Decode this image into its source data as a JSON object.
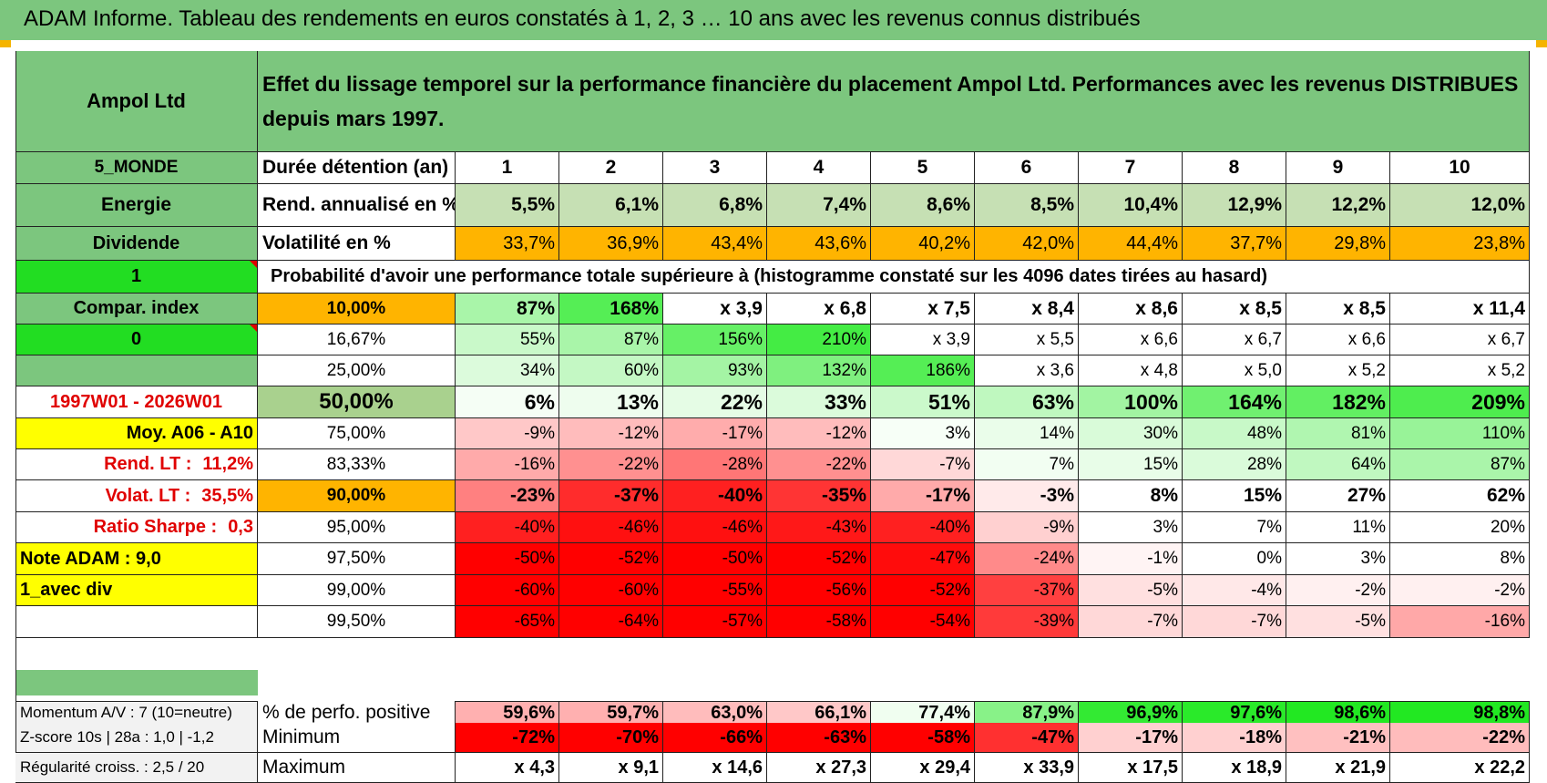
{
  "header": {
    "title": "ADAM Informe. Tableau des rendements en euros constatés à 1, 2, 3 … 10 ans avec les revenus connus distribués"
  },
  "colors": {
    "green_header": "#7cc67e",
    "bright_green": "#22dd22",
    "orange": "#ffb400",
    "yellow": "#ffff00",
    "light_green": "#c6e0b4"
  },
  "left_panel": {
    "company": "Ampol Ltd",
    "region": "5_MONDE",
    "sector": "Energie",
    "type": "Dividende",
    "flag_1": "1",
    "compar_index": "Compar. index",
    "flag_0": "0",
    "period": "1997W01 - 2026W01",
    "moy": "Moy. A06 - A10",
    "rend_lt_label": "Rend. LT :",
    "rend_lt_value": "11,2%",
    "volat_lt_label": "Volat. LT :",
    "volat_lt_value": "35,5%",
    "sharpe_label": "Ratio Sharpe :",
    "sharpe_value": "0,3",
    "note": "Note ADAM : 9,0",
    "avec_div": "1_avec div"
  },
  "main": {
    "description": "Effet du lissage temporel sur la performance financière du placement Ampol Ltd. Performances avec les revenus DISTRIBUES depuis mars 1997.",
    "duration_label": "Durée détention (an)",
    "years": [
      "1",
      "2",
      "3",
      "4",
      "5",
      "6",
      "7",
      "8",
      "9",
      "10"
    ],
    "rend_label": "Rend. annualisé en %",
    "rend_values": [
      "5,5%",
      "6,1%",
      "6,8%",
      "7,4%",
      "8,6%",
      "8,5%",
      "10,4%",
      "12,9%",
      "12,2%",
      "12,0%"
    ],
    "vol_label": "Volatilité en %",
    "vol_values": [
      "33,7%",
      "36,9%",
      "43,4%",
      "43,6%",
      "40,2%",
      "42,0%",
      "44,4%",
      "37,7%",
      "29,8%",
      "23,8%"
    ],
    "prob_title": "Probabilité d'avoir une performance totale supérieure à (histogramme constaté sur les 4096 dates tirées au hasard)"
  },
  "prob_rows": [
    {
      "threshold": "10,00%",
      "values": [
        "87%",
        "168%",
        "x 3,9",
        "x 6,8",
        "x 7,5",
        "x 8,4",
        "x 8,6",
        "x 8,5",
        "x 8,5",
        "x 11,4"
      ],
      "colors": [
        "#a9f5a9",
        "#55ee55",
        "#ffffff",
        "#ffffff",
        "#ffffff",
        "#ffffff",
        "#ffffff",
        "#ffffff",
        "#ffffff",
        "#ffffff"
      ]
    },
    {
      "threshold": "16,67%",
      "values": [
        "55%",
        "87%",
        "156%",
        "210%",
        "x 3,9",
        "x 5,5",
        "x 6,6",
        "x 6,7",
        "x 6,6",
        "x 6,7"
      ],
      "colors": [
        "#c9f9c9",
        "#a9f5a9",
        "#66f066",
        "#44ec44",
        "#ffffff",
        "#ffffff",
        "#ffffff",
        "#ffffff",
        "#ffffff",
        "#ffffff"
      ]
    },
    {
      "threshold": "25,00%",
      "values": [
        "34%",
        "60%",
        "93%",
        "132%",
        "186%",
        "x 3,6",
        "x 4,8",
        "x 5,0",
        "x 5,2",
        "x 5,2"
      ],
      "colors": [
        "#dcfbdc",
        "#c4f8c4",
        "#a4f4a4",
        "#7ff07f",
        "#55ee55",
        "#ffffff",
        "#ffffff",
        "#ffffff",
        "#ffffff",
        "#ffffff"
      ]
    },
    {
      "threshold": "50,00%",
      "values": [
        "6%",
        "13%",
        "22%",
        "33%",
        "51%",
        "63%",
        "100%",
        "164%",
        "182%",
        "209%"
      ],
      "colors": [
        "#f5fef5",
        "#eefdee",
        "#e5fce5",
        "#dbfbdb",
        "#cbf9cb",
        "#bff8bf",
        "#a2f4a2",
        "#70f070",
        "#62ef62",
        "#4eed4e"
      ]
    },
    {
      "threshold": "75,00%",
      "values": [
        "-9%",
        "-12%",
        "-17%",
        "-12%",
        "3%",
        "14%",
        "30%",
        "48%",
        "81%",
        "110%"
      ],
      "colors": [
        "#ffc8c8",
        "#ffbcbc",
        "#ffacac",
        "#ffbcbc",
        "#f7fff7",
        "#eafdea",
        "#d9fbd9",
        "#c8f9c8",
        "#b0f6b0",
        "#98f398"
      ]
    },
    {
      "threshold": "83,33%",
      "values": [
        "-16%",
        "-22%",
        "-28%",
        "-22%",
        "-7%",
        "7%",
        "15%",
        "28%",
        "64%",
        "87%"
      ],
      "colors": [
        "#ffaaaa",
        "#ff9090",
        "#ff7676",
        "#ff9090",
        "#ffd8d8",
        "#f2fef2",
        "#e8fde8",
        "#dafbda",
        "#c0f8c0",
        "#aaf5aa"
      ]
    },
    {
      "threshold": "90,00%",
      "values": [
        "-23%",
        "-37%",
        "-40%",
        "-35%",
        "-17%",
        "-3%",
        "8%",
        "15%",
        "27%",
        "62%"
      ],
      "colors": [
        "#ff8080",
        "#ff2c2c",
        "#ff2020",
        "#ff3434",
        "#ffaaaa",
        "#ffeaea",
        "#ffffff",
        "#ffffff",
        "#ffffff",
        "#ffffff"
      ]
    },
    {
      "threshold": "95,00%",
      "values": [
        "-40%",
        "-46%",
        "-46%",
        "-43%",
        "-40%",
        "-9%",
        "3%",
        "7%",
        "11%",
        "20%"
      ],
      "colors": [
        "#ff2020",
        "#ff1010",
        "#ff1010",
        "#ff1818",
        "#ff2020",
        "#ffd0d0",
        "#ffffff",
        "#ffffff",
        "#ffffff",
        "#ffffff"
      ]
    },
    {
      "threshold": "97,50%",
      "values": [
        "-50%",
        "-52%",
        "-50%",
        "-52%",
        "-47%",
        "-24%",
        "-1%",
        "0%",
        "3%",
        "8%"
      ],
      "colors": [
        "#ff0000",
        "#ff0000",
        "#ff0000",
        "#ff0000",
        "#ff0c0c",
        "#ff8a8a",
        "#fff4f4",
        "#ffffff",
        "#ffffff",
        "#ffffff"
      ]
    },
    {
      "threshold": "99,00%",
      "values": [
        "-60%",
        "-60%",
        "-55%",
        "-56%",
        "-52%",
        "-37%",
        "-5%",
        "-4%",
        "-2%",
        "-2%"
      ],
      "colors": [
        "#ff0000",
        "#ff0000",
        "#ff0000",
        "#ff0000",
        "#ff0000",
        "#ff4040",
        "#ffe0e0",
        "#ffe8e8",
        "#fff0f0",
        "#fff0f0"
      ]
    },
    {
      "threshold": "99,50%",
      "values": [
        "-65%",
        "-64%",
        "-57%",
        "-58%",
        "-54%",
        "-39%",
        "-7%",
        "-7%",
        "-5%",
        "-16%"
      ],
      "colors": [
        "#ff0000",
        "#ff0000",
        "#ff0000",
        "#ff0000",
        "#ff0000",
        "#ff3a3a",
        "#ffd8d8",
        "#ffd8d8",
        "#ffe0e0",
        "#ffa8a8"
      ]
    }
  ],
  "bottom": {
    "momentum": "Momentum A/V : 7 (10=neutre)",
    "zscore": "Z-score 10s | 28a : 1,0 | -1,2",
    "regularite": "Régularité croiss. : 2,5 / 20",
    "pos_label": "% de perfo. positive",
    "pos_values": [
      "59,6%",
      "59,7%",
      "63,0%",
      "66,1%",
      "77,4%",
      "87,9%",
      "96,9%",
      "97,6%",
      "98,6%",
      "98,8%"
    ],
    "pos_colors": [
      "#ffb0b0",
      "#ffb0b0",
      "#ffbcbc",
      "#ffc8c8",
      "#f0fef0",
      "#88f288",
      "#33ea33",
      "#2aea2a",
      "#22e822",
      "#22e822"
    ],
    "min_label": "Minimum",
    "min_values": [
      "-72%",
      "-70%",
      "-66%",
      "-63%",
      "-58%",
      "-47%",
      "-17%",
      "-18%",
      "-21%",
      "-22%"
    ],
    "min_colors": [
      "#ff0000",
      "#ff0000",
      "#ff0000",
      "#ff0000",
      "#ff0000",
      "#ff3030",
      "#ffd0d0",
      "#ffd0d0",
      "#ffc0c0",
      "#ffbcbc"
    ],
    "max_label": "Maximum",
    "max_values": [
      "x 4,3",
      "x 9,1",
      "x 14,6",
      "x 27,3",
      "x 29,4",
      "x 33,9",
      "x 17,5",
      "x 18,9",
      "x 21,9",
      "x 22,2"
    ]
  }
}
